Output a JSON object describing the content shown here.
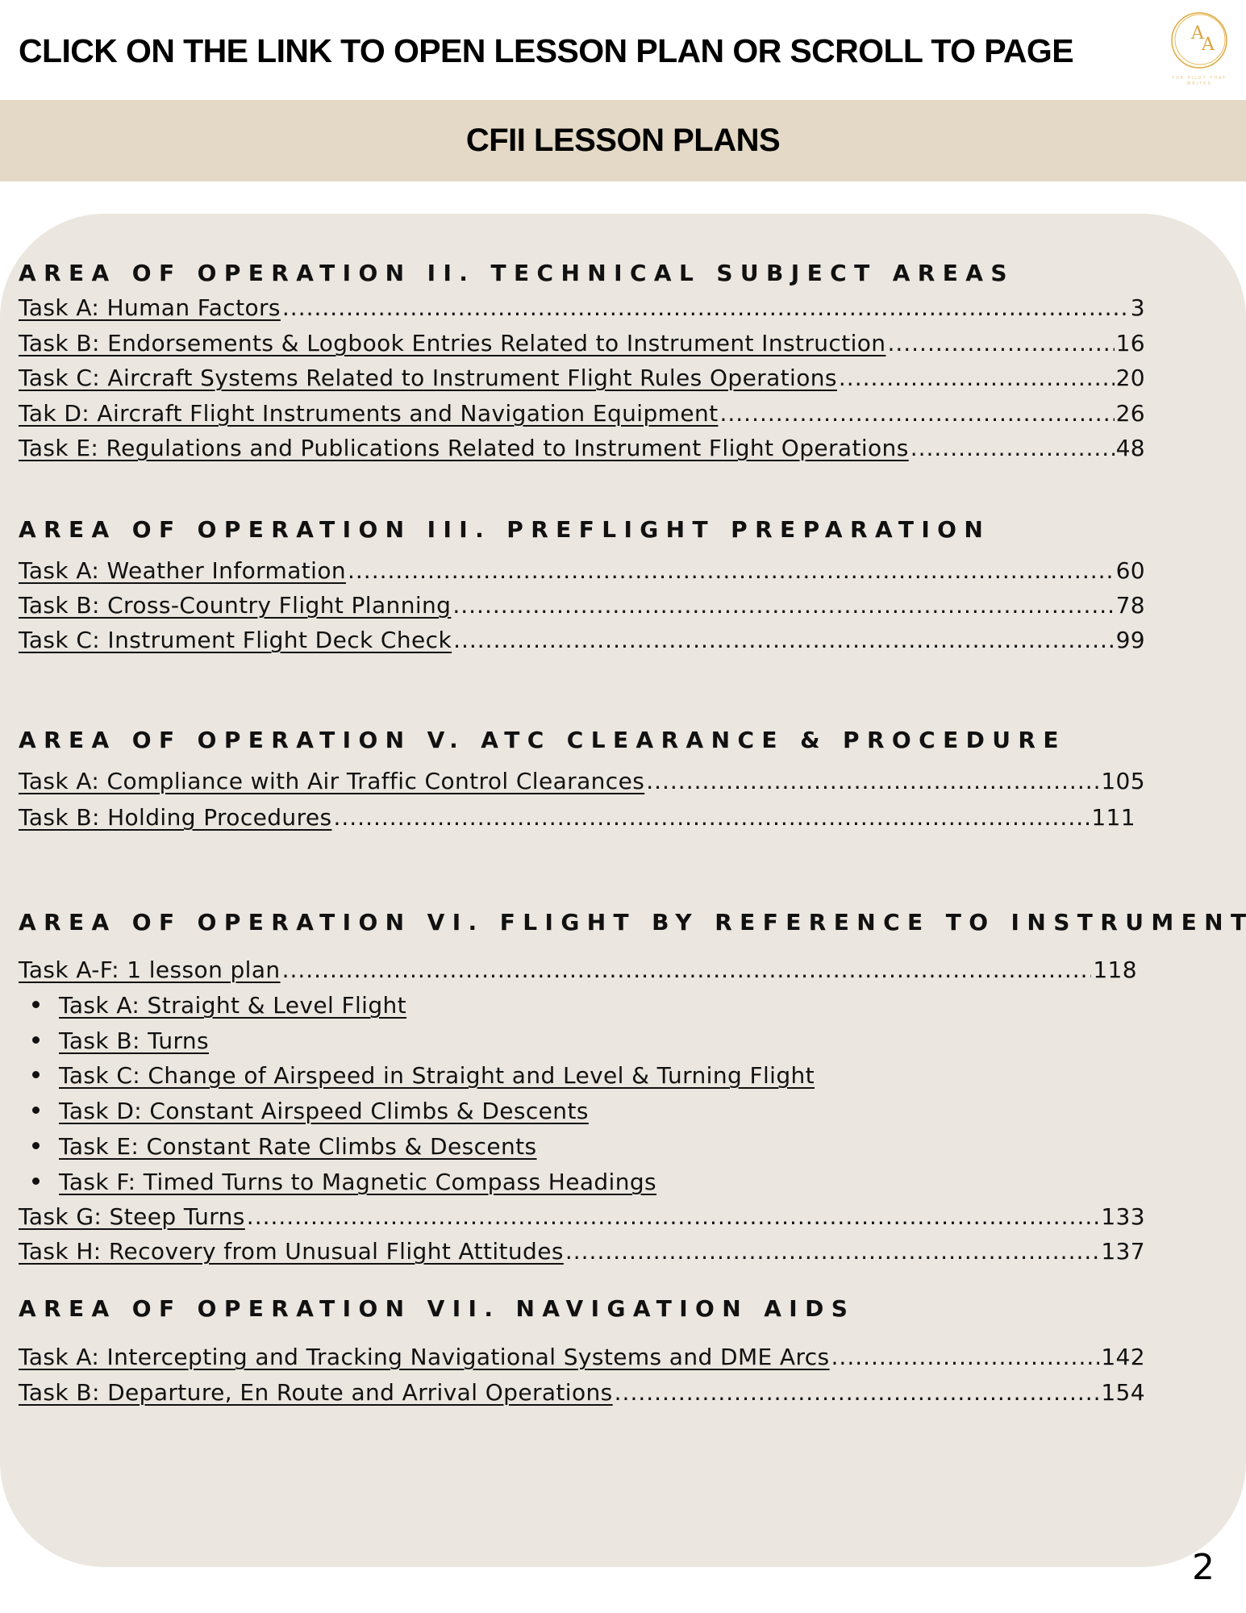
{
  "header": {
    "title": "CLICK ON THE LINK TO OPEN LESSON PLAN OR SCROLL TO PAGE",
    "logo": {
      "monogram": "AA",
      "tagline": "THE PILOT THAT WRITES"
    },
    "band_title": "CFII LESSON PLANS",
    "band_color": "#e3d9c6",
    "panel_color": "#ebe6df"
  },
  "sections": [
    {
      "heading": "AREA OF OPERATION II. TECHNICAL SUBJECT AREAS",
      "items": [
        {
          "label": "Task A: Human Factors ",
          "page": "3"
        },
        {
          "label": "Task B: Endorsements & Logbook Entries Related to Instrument Instruction",
          "page": "16"
        },
        {
          "label": "Task C: Aircraft Systems Related to Instrument Flight Rules Operations",
          "page": "20"
        },
        {
          "label": "Tak D: Aircraft Flight Instruments and Navigation Equipment",
          "page": "26"
        },
        {
          "label": "Task E: Regulations and Publications Related to Instrument Flight Operations",
          "page": "48"
        }
      ]
    },
    {
      "heading": "AREA OF OPERATION III. PREFLIGHT PREPARATION",
      "items": [
        {
          "label": "Task A: Weather Information",
          "page": "60"
        },
        {
          "label": "Task B: Cross-Country Flight Planning",
          "page": "78"
        },
        {
          "label": "Task C: Instrument Flight Deck Check",
          "page": "99"
        }
      ]
    },
    {
      "heading": "AREA OF OPERATION V. ATC CLEARANCE & PROCEDURE",
      "items": [
        {
          "label": "Task A: Compliance with Air Traffic Control Clearances",
          "page": "105"
        },
        {
          "label": "Task B: Holding Procedures",
          "page": "111"
        }
      ]
    },
    {
      "heading": "AREA OF OPERATION VI. FLIGHT BY REFERENCE TO INSTRUMENTS",
      "items": [
        {
          "label": "Task A-F: 1 lesson plan",
          "page": "118"
        },
        {
          "label": "Task G: Steep Turns ",
          "page": "133"
        },
        {
          "label": "Task H: Recovery from Unusual Flight Attitudes ",
          "page": "137"
        }
      ],
      "bullets": [
        "Task A: Straight & Level Flight",
        "Task B: Turns",
        "Task C: Change of Airspeed in Straight and Level & Turning Flight ",
        "Task D: Constant Airspeed Climbs & Descents ",
        "Task E: Constant Rate Climbs & Descents",
        "Task F: Timed Turns to Magnetic Compass Headings"
      ]
    },
    {
      "heading": "AREA OF OPERATION VII. NAVIGATION AIDS",
      "items": [
        {
          "label": "Task A: Intercepting and Tracking Navigational Systems and DME Arcs",
          "page": "142"
        },
        {
          "label": "Task B: Departure, En Route and Arrival Operations ",
          "page": "154"
        }
      ]
    }
  ],
  "page_number": "2"
}
